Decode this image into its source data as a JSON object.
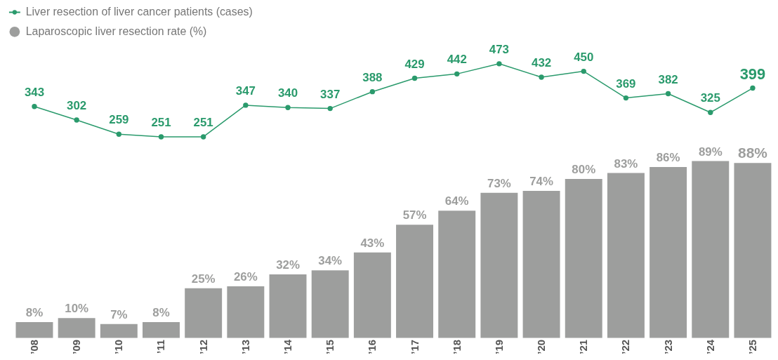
{
  "chart_data": [
    {
      "type": "line",
      "categories": [
        "’08",
        "’09",
        "’10",
        "’11",
        "’12",
        "’13",
        "’14",
        "’15",
        "’16",
        "’17",
        "’18",
        "’19",
        "’20",
        "’21",
        "’22",
        "’23",
        "’24",
        "’25"
      ],
      "series": [
        {
          "name": "Liver resection of liver cancer patients (cases)",
          "color": "#2a9a6c",
          "values": [
            343,
            302,
            259,
            251,
            251,
            347,
            340,
            337,
            388,
            429,
            442,
            473,
            432,
            450,
            369,
            382,
            325,
            399
          ]
        }
      ],
      "tick_labels": false,
      "data_labels": true,
      "legend": "top left",
      "marker": "circle",
      "grid": false
    },
    {
      "type": "bar",
      "categories": [
        "’08",
        "’09",
        "’10",
        "’11",
        "’12",
        "’13",
        "’14",
        "’15",
        "’16",
        "’17",
        "’18",
        "’19",
        "’20",
        "’21",
        "’22",
        "’23",
        "’24",
        "’25"
      ],
      "series": [
        {
          "name": "Laparoscopic liver resection rate (%)",
          "color": "#9d9e9d",
          "values": [
            8,
            10,
            7,
            8,
            25,
            26,
            32,
            34,
            43,
            57,
            64,
            73,
            74,
            80,
            83,
            86,
            89,
            88
          ],
          "value_labels": [
            "8%",
            "10%",
            "7%",
            "8%",
            "25%",
            "26%",
            "32%",
            "34%",
            "43%",
            "57%",
            "64%",
            "73%",
            "74%",
            "80%",
            "83%",
            "86%",
            "89%",
            "88%"
          ]
        }
      ],
      "tick_labels": "x",
      "data_labels": true,
      "legend": "top left",
      "grid": false
    }
  ]
}
